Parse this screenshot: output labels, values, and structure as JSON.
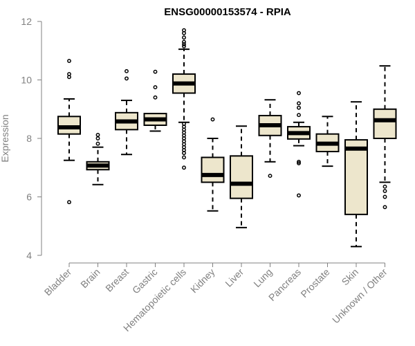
{
  "chart_data": {
    "type": "boxplot",
    "title": "ENSG00000153574 - RPIA",
    "xlabel": "",
    "ylabel": "Expression",
    "ylim": [
      4,
      12
    ],
    "yticks": [
      4,
      6,
      8,
      10,
      12
    ],
    "colors": {
      "box_fill": "#ede6cc",
      "stroke": "#000000",
      "axis": "#808080",
      "median": "#000000"
    },
    "categories": [
      "Bladder",
      "Brain",
      "Breast",
      "Gastric",
      "Hematopoietic cells",
      "Kidney",
      "Liver",
      "Lung",
      "Pancreas",
      "Prostate",
      "Skin",
      "Unknown / Other"
    ],
    "boxes": [
      {
        "category": "Bladder",
        "whisker_low": 7.25,
        "q1": 8.15,
        "median": 8.38,
        "q3": 8.75,
        "whisker_high": 9.35,
        "outliers": [
          10.65,
          10.2,
          10.1,
          5.82
        ]
      },
      {
        "category": "Brain",
        "whisker_low": 6.42,
        "q1": 6.93,
        "median": 7.07,
        "q3": 7.2,
        "whisker_high": 7.7,
        "outliers": [
          7.82,
          8.0,
          8.12
        ]
      },
      {
        "category": "Breast",
        "whisker_low": 7.45,
        "q1": 8.3,
        "median": 8.58,
        "q3": 8.88,
        "whisker_high": 9.3,
        "outliers": [
          10.3,
          10.05
        ]
      },
      {
        "category": "Gastric",
        "whisker_low": 8.25,
        "q1": 8.45,
        "median": 8.65,
        "q3": 8.85,
        "whisker_high": 8.85,
        "outliers": [
          10.28,
          9.75,
          9.4
        ]
      },
      {
        "category": "Hematopoietic cells",
        "whisker_low": 8.55,
        "q1": 9.55,
        "median": 9.88,
        "q3": 10.2,
        "whisker_high": 11.05,
        "outliers": [
          11.7,
          11.6,
          11.45,
          11.3,
          11.22,
          11.15,
          8.5,
          8.4,
          8.3,
          8.2,
          8.1,
          8.0,
          7.9,
          7.8,
          7.7,
          7.6,
          7.5,
          7.35,
          7.0
        ]
      },
      {
        "category": "Kidney",
        "whisker_low": 5.52,
        "q1": 6.5,
        "median": 6.75,
        "q3": 7.35,
        "whisker_high": 8.0,
        "outliers": [
          8.65
        ]
      },
      {
        "category": "Liver",
        "whisker_low": 4.95,
        "q1": 5.95,
        "median": 6.45,
        "q3": 7.4,
        "whisker_high": 8.42,
        "outliers": []
      },
      {
        "category": "Lung",
        "whisker_low": 7.2,
        "q1": 8.1,
        "median": 8.45,
        "q3": 8.78,
        "whisker_high": 9.32,
        "outliers": [
          6.72
        ]
      },
      {
        "category": "Pancreas",
        "whisker_low": 7.75,
        "q1": 7.98,
        "median": 8.18,
        "q3": 8.4,
        "whisker_high": 8.55,
        "outliers": [
          9.55,
          9.2,
          9.05,
          8.8,
          7.2,
          7.15,
          6.05
        ]
      },
      {
        "category": "Prostate",
        "whisker_low": 7.05,
        "q1": 7.55,
        "median": 7.82,
        "q3": 8.15,
        "whisker_high": 8.75,
        "outliers": []
      },
      {
        "category": "Skin",
        "whisker_low": 4.3,
        "q1": 5.4,
        "median": 7.65,
        "q3": 7.95,
        "whisker_high": 9.25,
        "outliers": []
      },
      {
        "category": "Unknown / Other",
        "whisker_low": 6.5,
        "q1": 8.0,
        "median": 8.62,
        "q3": 9.0,
        "whisker_high": 10.48,
        "outliers": [
          6.35,
          6.2,
          6.0,
          5.65
        ]
      }
    ]
  }
}
